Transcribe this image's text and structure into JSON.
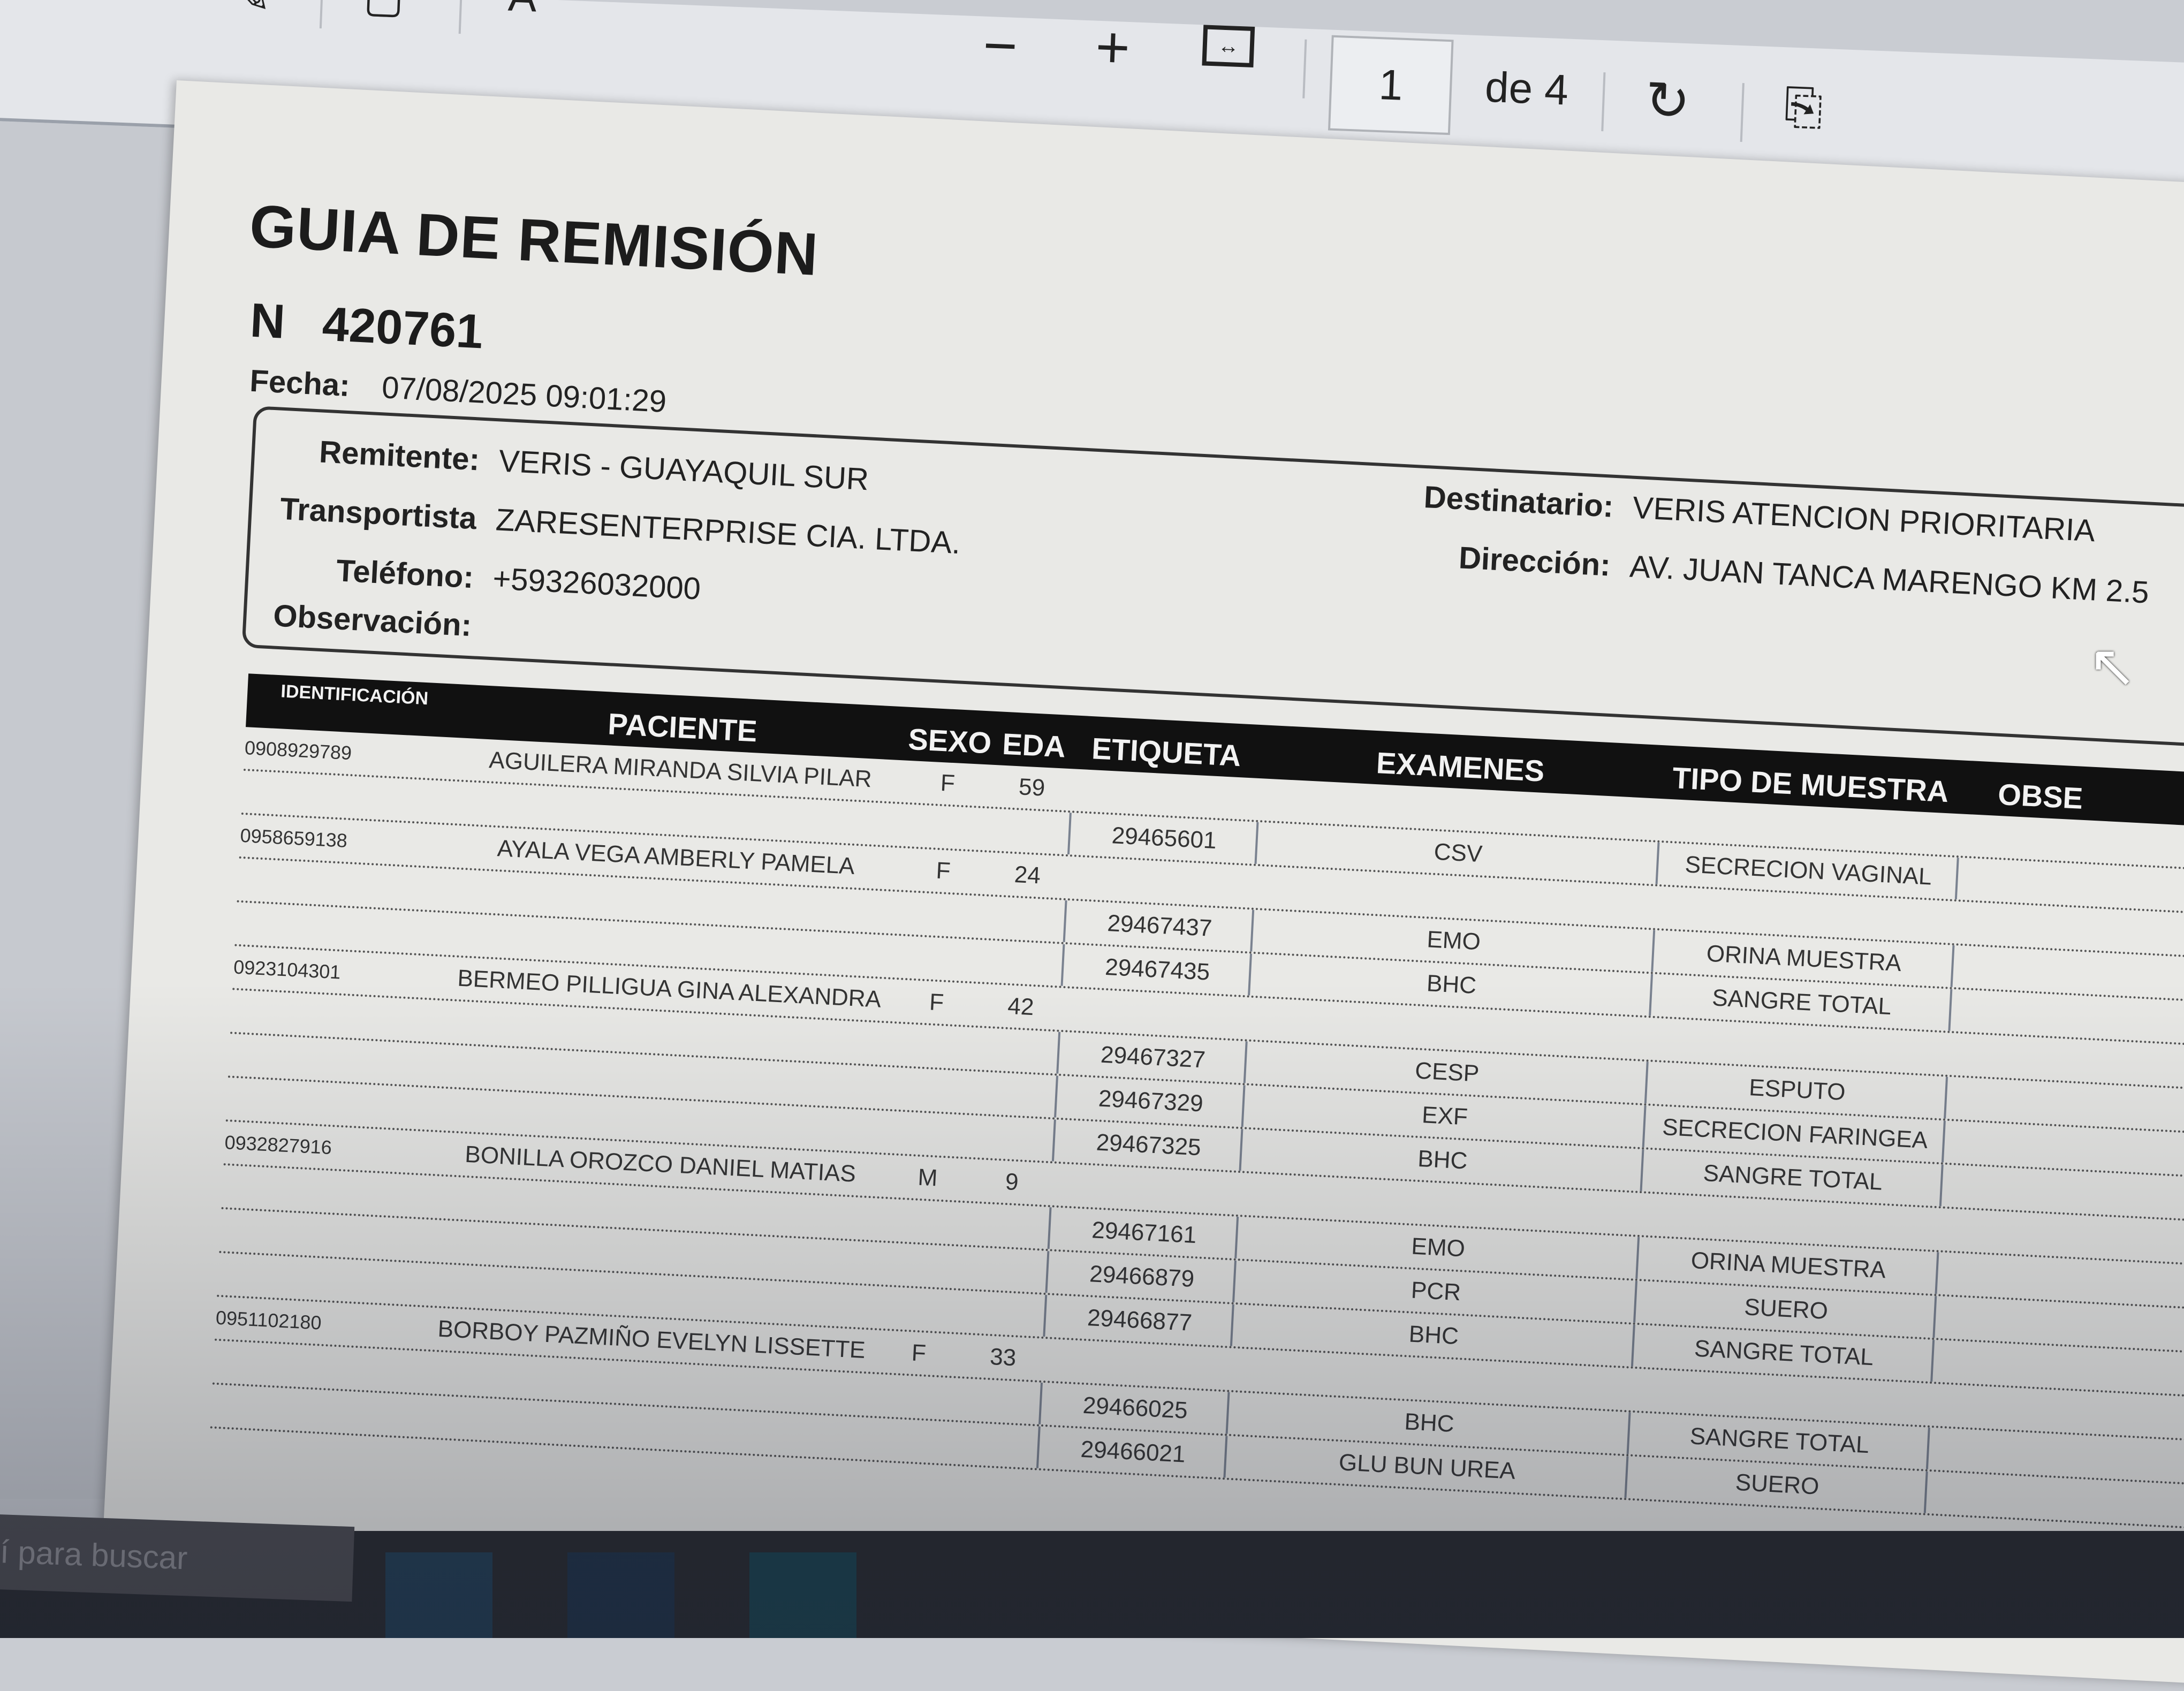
{
  "toolbar": {
    "zoom_out_icon": "minus-icon",
    "zoom_in_icon": "plus-icon",
    "fit_icon": "fit-width-icon",
    "page_current": "1",
    "page_total": "de 4",
    "rotate_icon": "rotate-icon",
    "view_icon": "page-view-icon",
    "left_icons": [
      "draw-icon",
      "erase-icon",
      "text-icon"
    ]
  },
  "document": {
    "title": "GUIA DE REMISIÓN",
    "number_label": "N",
    "number": "420761",
    "fecha_label": "Fecha:",
    "fecha": "07/08/2025 09:01:29",
    "remitente_label": "Remitente:",
    "remitente": "VERIS - GUAYAQUIL SUR",
    "transportista_label": "Transportista",
    "transportista": "ZARESENTERPRISE CIA. LTDA.",
    "telefono_label": "Teléfono:",
    "telefono": "+59326032000",
    "observacion_label": "Observación:",
    "observacion": "",
    "destinatario_label": "Destinatario:",
    "destinatario": "VERIS ATENCION PRIORITARIA",
    "direccion_label": "Dirección:",
    "direccion": "AV. JUAN TANCA MARENGO KM 2.5"
  },
  "table": {
    "headers": [
      "IDENTIFICACIÓN",
      "PACIENTE",
      "SEXO",
      "EDA",
      "ETIQUETA",
      "EXAMENES",
      "TIPO DE MUESTRA",
      "OBSE"
    ],
    "patients": [
      {
        "id": "0908929789",
        "name": "AGUILERA MIRANDA SILVIA PILAR",
        "sex": "F",
        "age": "59",
        "samples": [
          {
            "label": "29465601",
            "exam": "CSV",
            "type": "SECRECION VAGINAL"
          }
        ]
      },
      {
        "id": "0958659138",
        "name": "AYALA VEGA AMBERLY PAMELA",
        "sex": "F",
        "age": "24",
        "samples": [
          {
            "label": "29467437",
            "exam": "EMO",
            "type": "ORINA MUESTRA"
          },
          {
            "label": "29467435",
            "exam": "BHC",
            "type": "SANGRE TOTAL"
          }
        ]
      },
      {
        "id": "0923104301",
        "name": "BERMEO PILLIGUA GINA ALEXANDRA",
        "sex": "F",
        "age": "42",
        "samples": [
          {
            "label": "29467327",
            "exam": "CESP",
            "type": "ESPUTO"
          },
          {
            "label": "29467329",
            "exam": "EXF",
            "type": "SECRECION FARINGEA"
          },
          {
            "label": "29467325",
            "exam": "BHC",
            "type": "SANGRE TOTAL"
          }
        ]
      },
      {
        "id": "0932827916",
        "name": "BONILLA OROZCO DANIEL MATIAS",
        "sex": "M",
        "age": "9",
        "samples": [
          {
            "label": "29467161",
            "exam": "EMO",
            "type": "ORINA MUESTRA"
          },
          {
            "label": "29466879",
            "exam": "PCR",
            "type": "SUERO"
          },
          {
            "label": "29466877",
            "exam": "BHC",
            "type": "SANGRE TOTAL"
          }
        ]
      },
      {
        "id": "0951102180",
        "name": "BORBOY PAZMIÑO EVELYN LISSETTE",
        "sex": "F",
        "age": "33",
        "samples": [
          {
            "label": "29466025",
            "exam": "BHC",
            "type": "SANGRE TOTAL"
          },
          {
            "label": "29466021",
            "exam": "GLU BUN UREA",
            "type": "SUERO"
          }
        ]
      }
    ]
  },
  "taskbar": {
    "search_placeholder": "í para buscar"
  }
}
